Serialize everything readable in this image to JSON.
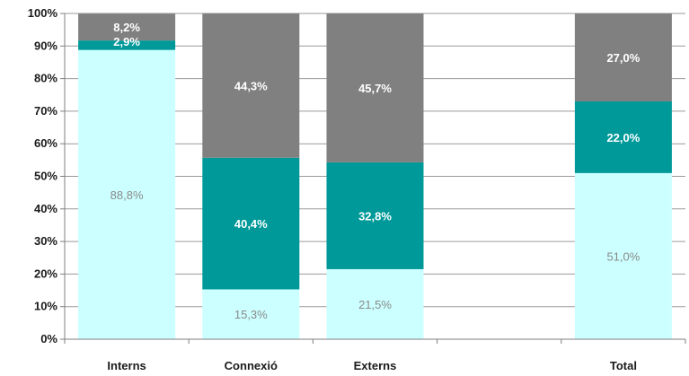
{
  "chart_data": {
    "type": "bar",
    "stacked": true,
    "percent_stacked": true,
    "categories": [
      "Interns",
      "Connexió",
      "Externs",
      "",
      "Total"
    ],
    "series": [
      {
        "values": [
          88.8,
          15.3,
          21.5,
          null,
          51.0
        ],
        "labels": [
          "88,8%",
          "15,3%",
          "21,5%",
          "",
          "51,0%"
        ],
        "color": "#ccffff",
        "label_color": "#8a8a8a"
      },
      {
        "values": [
          2.9,
          40.4,
          32.8,
          null,
          22.0
        ],
        "labels": [
          "2,9%",
          "40,4%",
          "32,8%",
          "",
          "22,0%"
        ],
        "color": "#009999",
        "label_color": "#ffffff"
      },
      {
        "values": [
          8.2,
          44.3,
          45.7,
          null,
          27.0
        ],
        "labels": [
          "8,2%",
          "44,3%",
          "45,7%",
          "",
          "27,0%"
        ],
        "color": "#808080",
        "label_color": "#ffffff"
      }
    ],
    "ylim": [
      0,
      100
    ],
    "yticks": [
      0,
      10,
      20,
      30,
      40,
      50,
      60,
      70,
      80,
      90,
      100
    ],
    "ytick_labels": [
      "0%",
      "10%",
      "20%",
      "30%",
      "40%",
      "50%",
      "60%",
      "70%",
      "80%",
      "90%",
      "100%"
    ],
    "grid": true,
    "legend": "none",
    "title": "",
    "xlabel": "",
    "ylabel": ""
  }
}
